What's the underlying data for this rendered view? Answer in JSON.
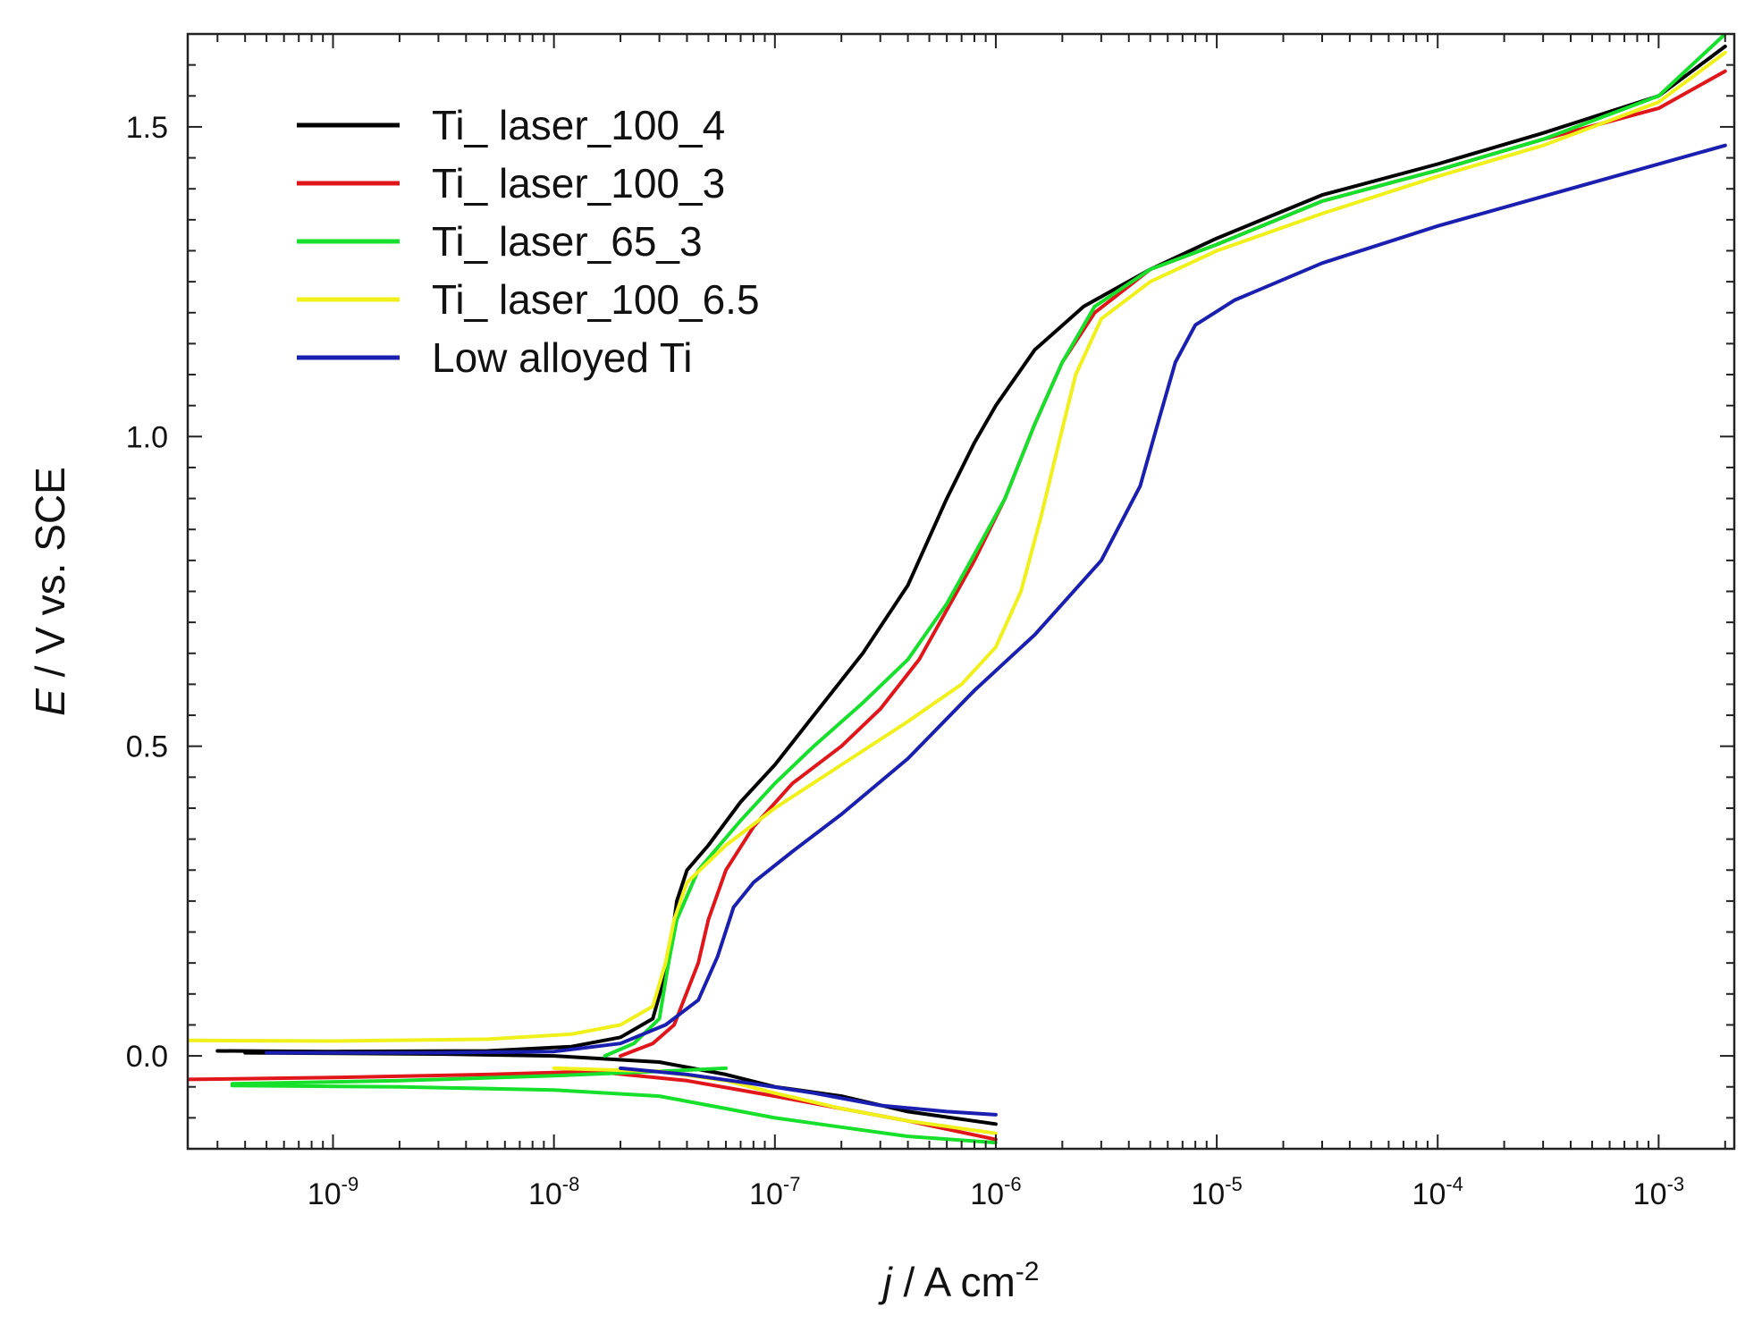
{
  "chart_data": {
    "type": "line",
    "title": "",
    "xlabel": "j / A cm-2",
    "xlabel_parts": {
      "var": "j",
      "rest": " / A cm",
      "sup": "-2"
    },
    "ylabel": "E / V vs. SCE",
    "ylabel_parts": {
      "var": "E",
      "rest": " / V vs. SCE"
    },
    "xscale": "log",
    "xlim": [
      2.2e-10,
      0.0022
    ],
    "ylim": [
      -0.15,
      1.65
    ],
    "grid": false,
    "legend_position": "top-left",
    "x_ticks": [
      {
        "value": 1e-09,
        "base": "10",
        "exp": "-9"
      },
      {
        "value": 1e-08,
        "base": "10",
        "exp": "-8"
      },
      {
        "value": 1e-07,
        "base": "10",
        "exp": "-7"
      },
      {
        "value": 1e-06,
        "base": "10",
        "exp": "-6"
      },
      {
        "value": 1e-05,
        "base": "10",
        "exp": "-5"
      },
      {
        "value": 0.0001,
        "base": "10",
        "exp": "-4"
      },
      {
        "value": 0.001,
        "base": "10",
        "exp": "-3"
      }
    ],
    "y_ticks": [
      {
        "value": 0.0,
        "label": "0.0"
      },
      {
        "value": 0.5,
        "label": "0.5"
      },
      {
        "value": 1.0,
        "label": "1.0"
      },
      {
        "value": 1.5,
        "label": "1.5"
      }
    ],
    "series": [
      {
        "name": "Ti_ laser_100_4",
        "color": "#000000",
        "anodic": [
          [
            3e-10,
            0.008
          ],
          [
            1e-09,
            0.007
          ],
          [
            5e-09,
            0.008
          ],
          [
            1.2e-08,
            0.015
          ],
          [
            2e-08,
            0.03
          ],
          [
            2.8e-08,
            0.06
          ],
          [
            3.3e-08,
            0.15
          ],
          [
            3.6e-08,
            0.25
          ],
          [
            4e-08,
            0.3
          ],
          [
            5e-08,
            0.34
          ],
          [
            7e-08,
            0.41
          ],
          [
            1e-07,
            0.47
          ],
          [
            1.5e-07,
            0.55
          ],
          [
            2.5e-07,
            0.65
          ],
          [
            4e-07,
            0.76
          ],
          [
            6e-07,
            0.9
          ],
          [
            8e-07,
            0.99
          ],
          [
            1e-06,
            1.05
          ],
          [
            1.5e-06,
            1.14
          ],
          [
            2.5e-06,
            1.21
          ],
          [
            5e-06,
            1.27
          ],
          [
            1e-05,
            1.32
          ],
          [
            3e-05,
            1.39
          ],
          [
            0.0001,
            1.44
          ],
          [
            0.0003,
            1.49
          ],
          [
            0.001,
            1.55
          ],
          [
            0.002,
            1.63
          ]
        ],
        "cathodic": [
          [
            4e-10,
            0.005
          ],
          [
            3e-09,
            0.003
          ],
          [
            1e-08,
            0.0
          ],
          [
            3e-08,
            -0.01
          ],
          [
            6e-08,
            -0.03
          ],
          [
            1e-07,
            -0.05
          ],
          [
            2e-07,
            -0.065
          ],
          [
            4e-07,
            -0.09
          ],
          [
            1e-06,
            -0.11
          ]
        ]
      },
      {
        "name": "Ti_ laser_100_3",
        "color": "#e0161b",
        "anodic": [
          [
            2e-08,
            0.0
          ],
          [
            2.8e-08,
            0.02
          ],
          [
            3.5e-08,
            0.05
          ],
          [
            4.5e-08,
            0.15
          ],
          [
            5e-08,
            0.22
          ],
          [
            6e-08,
            0.3
          ],
          [
            8e-08,
            0.37
          ],
          [
            1.2e-07,
            0.44
          ],
          [
            2e-07,
            0.5
          ],
          [
            3e-07,
            0.56
          ],
          [
            4.5e-07,
            0.64
          ],
          [
            6e-07,
            0.72
          ],
          [
            8e-07,
            0.8
          ],
          [
            1.1e-06,
            0.9
          ],
          [
            1.5e-06,
            1.02
          ],
          [
            2e-06,
            1.12
          ],
          [
            2.8e-06,
            1.2
          ],
          [
            5e-06,
            1.27
          ],
          [
            1e-05,
            1.31
          ],
          [
            3e-05,
            1.38
          ],
          [
            0.0001,
            1.43
          ],
          [
            0.0003,
            1.48
          ],
          [
            0.001,
            1.53
          ],
          [
            0.002,
            1.59
          ]
        ],
        "cathodic": [
          [
            2.2e-10,
            -0.038
          ],
          [
            1e-09,
            -0.035
          ],
          [
            5e-09,
            -0.03
          ],
          [
            1.5e-08,
            -0.025
          ],
          [
            4e-08,
            -0.04
          ],
          [
            1e-07,
            -0.065
          ],
          [
            2e-07,
            -0.085
          ],
          [
            4e-07,
            -0.105
          ],
          [
            1e-06,
            -0.135
          ]
        ]
      },
      {
        "name": "Ti_ laser_65_3",
        "color": "#17e02c",
        "anodic": [
          [
            1.7e-08,
            0.0
          ],
          [
            2.3e-08,
            0.02
          ],
          [
            3e-08,
            0.06
          ],
          [
            3.3e-08,
            0.15
          ],
          [
            3.6e-08,
            0.22
          ],
          [
            4.5e-08,
            0.3
          ],
          [
            7e-08,
            0.38
          ],
          [
            1e-07,
            0.44
          ],
          [
            1.5e-07,
            0.5
          ],
          [
            2.5e-07,
            0.57
          ],
          [
            4e-07,
            0.64
          ],
          [
            6e-07,
            0.73
          ],
          [
            8e-07,
            0.81
          ],
          [
            1.1e-06,
            0.9
          ],
          [
            1.5e-06,
            1.02
          ],
          [
            2e-06,
            1.12
          ],
          [
            2.8e-06,
            1.21
          ],
          [
            5e-06,
            1.27
          ],
          [
            1e-05,
            1.31
          ],
          [
            3e-05,
            1.38
          ],
          [
            0.0001,
            1.43
          ],
          [
            0.0003,
            1.48
          ],
          [
            0.001,
            1.55
          ],
          [
            0.002,
            1.65
          ]
        ],
        "cathodic_upper": [
          [
            3.5e-10,
            -0.045
          ],
          [
            2e-09,
            -0.04
          ],
          [
            1e-08,
            -0.032
          ],
          [
            3e-08,
            -0.025
          ],
          [
            6e-08,
            -0.02
          ]
        ],
        "cathodic": [
          [
            3.5e-10,
            -0.048
          ],
          [
            2e-09,
            -0.05
          ],
          [
            1e-08,
            -0.055
          ],
          [
            3e-08,
            -0.065
          ],
          [
            6e-08,
            -0.085
          ],
          [
            1e-07,
            -0.1
          ],
          [
            2e-07,
            -0.115
          ],
          [
            4e-07,
            -0.13
          ],
          [
            1e-06,
            -0.14
          ]
        ]
      },
      {
        "name": "Ti_ laser_100_6.5",
        "color": "#f0f01a",
        "anodic": [
          [
            2.2e-10,
            0.025
          ],
          [
            1e-09,
            0.024
          ],
          [
            5e-09,
            0.027
          ],
          [
            1.2e-08,
            0.035
          ],
          [
            2e-08,
            0.05
          ],
          [
            2.8e-08,
            0.08
          ],
          [
            3.2e-08,
            0.15
          ],
          [
            3.5e-08,
            0.22
          ],
          [
            4e-08,
            0.28
          ],
          [
            6e-08,
            0.34
          ],
          [
            1e-07,
            0.4
          ],
          [
            2e-07,
            0.47
          ],
          [
            4e-07,
            0.54
          ],
          [
            7e-07,
            0.6
          ],
          [
            1e-06,
            0.66
          ],
          [
            1.3e-06,
            0.75
          ],
          [
            1.6e-06,
            0.87
          ],
          [
            1.9e-06,
            0.98
          ],
          [
            2.3e-06,
            1.1
          ],
          [
            3e-06,
            1.19
          ],
          [
            5e-06,
            1.25
          ],
          [
            1e-05,
            1.3
          ],
          [
            3e-05,
            1.36
          ],
          [
            0.0001,
            1.42
          ],
          [
            0.0003,
            1.47
          ],
          [
            0.001,
            1.54
          ],
          [
            0.002,
            1.62
          ]
        ],
        "cathodic": [
          [
            1e-08,
            -0.02
          ],
          [
            3e-08,
            -0.025
          ],
          [
            6e-08,
            -0.04
          ],
          [
            1e-07,
            -0.06
          ],
          [
            2e-07,
            -0.085
          ],
          [
            4e-07,
            -0.105
          ],
          [
            1e-06,
            -0.125
          ]
        ]
      },
      {
        "name": "Low alloyed Ti",
        "color": "#1a1fb0",
        "anodic": [
          [
            5e-10,
            0.005
          ],
          [
            3e-09,
            0.005
          ],
          [
            1e-08,
            0.007
          ],
          [
            2e-08,
            0.02
          ],
          [
            3.2e-08,
            0.05
          ],
          [
            4.5e-08,
            0.09
          ],
          [
            5.5e-08,
            0.16
          ],
          [
            6.5e-08,
            0.24
          ],
          [
            8e-08,
            0.28
          ],
          [
            1.2e-07,
            0.33
          ],
          [
            2e-07,
            0.39
          ],
          [
            4e-07,
            0.48
          ],
          [
            8e-07,
            0.59
          ],
          [
            1.5e-06,
            0.68
          ],
          [
            3e-06,
            0.8
          ],
          [
            4.5e-06,
            0.92
          ],
          [
            5.5e-06,
            1.03
          ],
          [
            6.5e-06,
            1.12
          ],
          [
            8e-06,
            1.18
          ],
          [
            1.2e-05,
            1.22
          ],
          [
            3e-05,
            1.28
          ],
          [
            0.0001,
            1.34
          ],
          [
            0.0005,
            1.41
          ],
          [
            0.002,
            1.47
          ]
        ],
        "cathodic": [
          [
            2e-08,
            -0.02
          ],
          [
            4e-08,
            -0.03
          ],
          [
            8e-08,
            -0.045
          ],
          [
            1.5e-07,
            -0.06
          ],
          [
            3e-07,
            -0.08
          ],
          [
            6e-07,
            -0.09
          ],
          [
            1e-06,
            -0.095
          ]
        ]
      }
    ]
  }
}
